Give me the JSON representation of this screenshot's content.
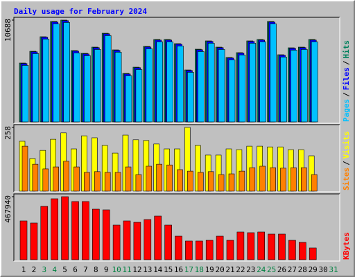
{
  "chart_data": [
    {
      "type": "bar",
      "title": "Daily usage for February 2024",
      "separator": "/",
      "series": [
        {
          "name": "Hits",
          "color": "#00805c",
          "values": [
            6180,
            7416,
            8943,
            10543,
            10688,
            7489,
            7198,
            7852,
            9307,
            7562,
            5090,
            5744,
            7925,
            8652,
            8652,
            8216,
            5453,
            7634,
            8507,
            7852,
            6762,
            7271,
            8507,
            8652,
            10543,
            7053,
            7780,
            7852,
            8652,
            null,
            null
          ]
        },
        {
          "name": "Files",
          "color": "#0000ff",
          "values": [
            6120,
            7356,
            8883,
            10483,
            10628,
            7429,
            7138,
            7792,
            9247,
            7502,
            5030,
            5684,
            7865,
            8592,
            8592,
            8156,
            5393,
            7574,
            8447,
            7792,
            6702,
            7211,
            8447,
            8592,
            10483,
            6993,
            7720,
            7792,
            8592,
            null,
            null
          ]
        },
        {
          "name": "Pages",
          "color": "#00c0ff",
          "values": [
            5930,
            7166,
            8693,
            10293,
            10438,
            7239,
            6948,
            7602,
            9057,
            7312,
            4840,
            5494,
            7675,
            8402,
            8402,
            7966,
            5203,
            7384,
            8257,
            7602,
            6512,
            7021,
            8257,
            8402,
            10293,
            6803,
            7530,
            7602,
            8402,
            null,
            null
          ]
        }
      ],
      "ylim": [
        0,
        10688
      ],
      "yticks": [
        10688
      ]
    },
    {
      "type": "bar",
      "series": [
        {
          "name": "Visits",
          "color": "#ffff00",
          "values": [
            202,
            132,
            165,
            210,
            236,
            171,
            224,
            216,
            185,
            154,
            227,
            208,
            205,
            191,
            171,
            171,
            258,
            185,
            146,
            146,
            171,
            168,
            182,
            182,
            179,
            179,
            168,
            168,
            143,
            null,
            null
          ]
        },
        {
          "name": "Sites",
          "color": "#ff8000",
          "values": [
            182,
            109,
            90,
            98,
            121,
            98,
            76,
            79,
            76,
            76,
            98,
            67,
            101,
            109,
            106,
            87,
            81,
            76,
            79,
            67,
            70,
            81,
            95,
            101,
            95,
            93,
            95,
            95,
            67,
            null,
            null
          ]
        }
      ],
      "ylim": [
        0,
        258
      ],
      "yticks": [
        258
      ]
    },
    {
      "type": "bar",
      "categories": [
        "1",
        "2",
        "3",
        "4",
        "5",
        "6",
        "7",
        "8",
        "9",
        "10",
        "11",
        "12",
        "13",
        "14",
        "15",
        "16",
        "17",
        "18",
        "19",
        "20",
        "21",
        "22",
        "23",
        "24",
        "25",
        "26",
        "27",
        "28",
        "29",
        "30",
        "31"
      ],
      "highlight_categories": [
        "3",
        "4",
        "10",
        "11",
        "17",
        "18",
        "24",
        "25",
        "31"
      ],
      "highlight_color": "#008040",
      "series": [
        {
          "name": "KBytes",
          "color": "#ff0000",
          "values": [
            287960,
            272535,
            395950,
            452510,
            467940,
            431940,
            431940,
            375380,
            370240,
            257110,
            287960,
            277680,
            298250,
            323960,
            257110,
            174830,
            138840,
            138840,
            143980,
            174830,
            143980,
            205690,
            200540,
            205690,
            190260,
            190260,
            143980,
            128550,
            87420,
            null,
            null
          ]
        }
      ],
      "ylim": [
        0,
        467940
      ],
      "yticks": [
        467940
      ]
    }
  ]
}
